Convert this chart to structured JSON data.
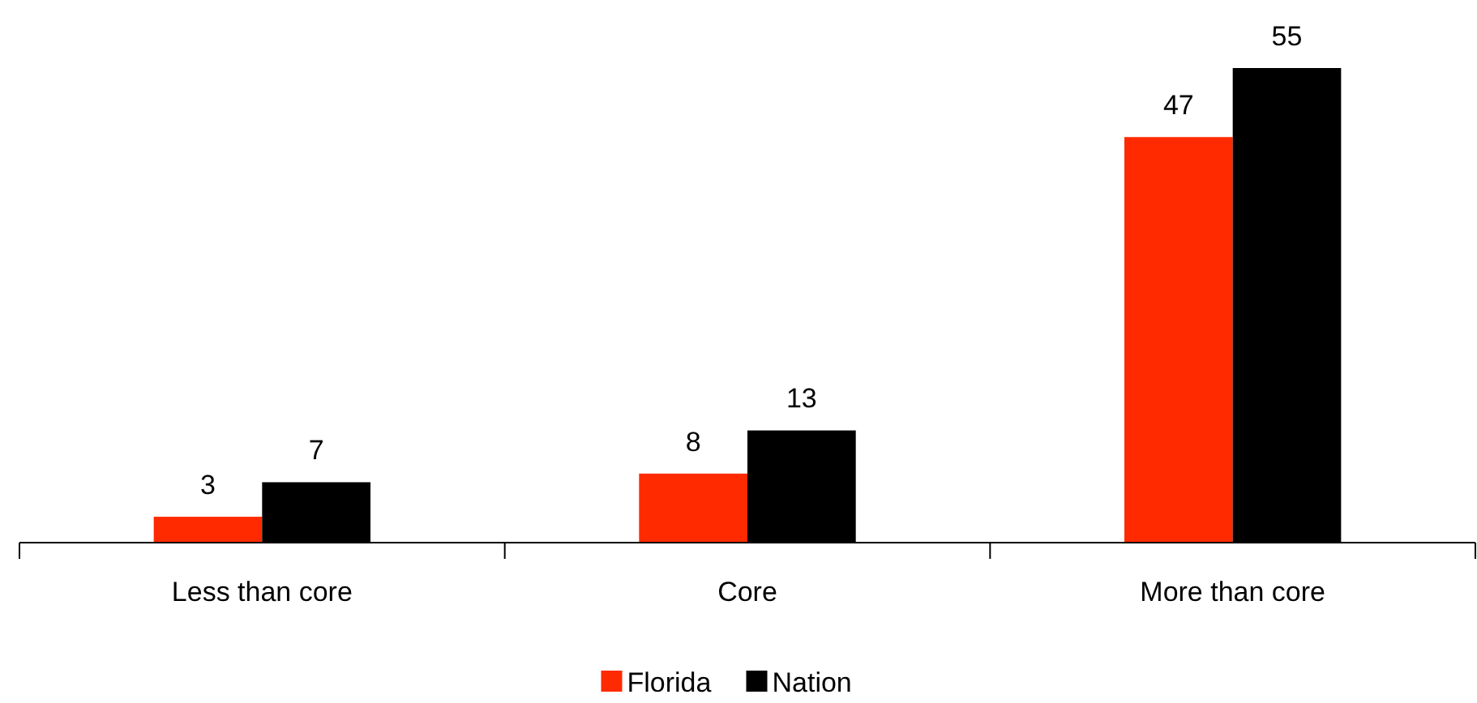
{
  "chart_data": {
    "type": "bar",
    "categories": [
      "Less than core",
      "Core",
      "More than core"
    ],
    "series": [
      {
        "name": "Florida",
        "color": "#ff2a00",
        "values": [
          3,
          8,
          47
        ]
      },
      {
        "name": "Nation",
        "color": "#000000",
        "values": [
          7,
          13,
          55
        ]
      }
    ],
    "data_labels": true,
    "legend": "bottom"
  }
}
